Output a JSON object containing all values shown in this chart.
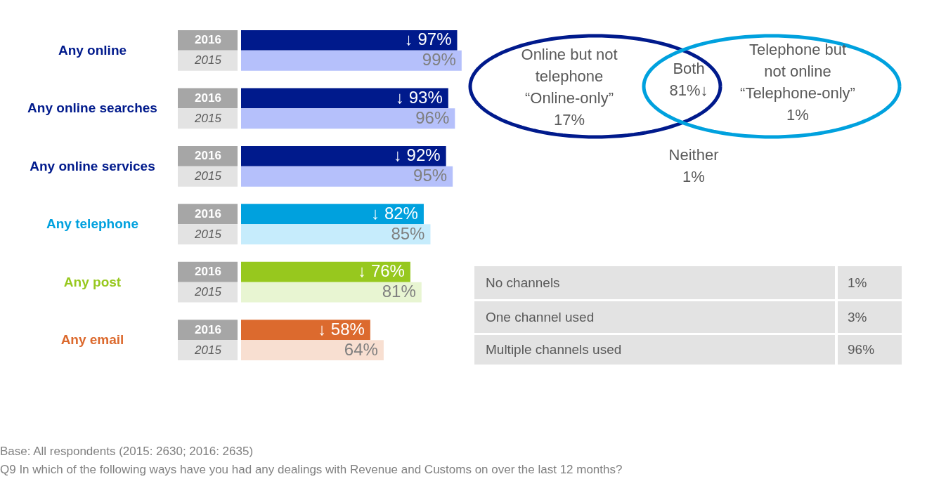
{
  "chart_data": [
    {
      "type": "bar",
      "orientation": "horizontal",
      "data_labels": false,
      "categories": [
        "Any online",
        "Any online searches",
        "Any online services",
        "Any telephone",
        "Any post",
        "Any email"
      ],
      "series": [
        {
          "name": "2016",
          "colors": [
            "#001a8c",
            "#001a8c",
            "#001a8c",
            "#00a1de",
            "#97c81e",
            "#dc6a2e"
          ],
          "values": [
            97,
            93,
            92,
            82,
            76,
            58
          ],
          "value_labels": [
            "↓ 97%",
            "↓ 93%",
            "↓ 92%",
            "↓ 82%",
            "↓ 76%",
            "↓ 58%"
          ]
        },
        {
          "name": "2015",
          "colors": [
            "#b5c0fb",
            "#b5c0fb",
            "#b5c0fb",
            "#c6ecfc",
            "#e8f5d2",
            "#f8dfd1"
          ],
          "values": [
            99,
            96,
            95,
            85,
            81,
            64
          ],
          "value_labels": [
            "99%",
            "96%",
            "95%",
            "85%",
            "81%",
            "64%"
          ]
        }
      ],
      "annotations": [
        "Base: All respondents (2015: 2630; 2016: 2635)",
        "Q9 In which of the following ways have you had any dealings with Revenue and Customs on over the last 12 months?"
      ]
    },
    {
      "type": "other",
      "categories": [
        "Online but not telephone “Online-only”",
        "Both",
        "Telephone but not online “Telephone-only”",
        "Neither"
      ],
      "values": [
        17,
        81,
        1,
        1
      ],
      "value_labels": [
        "17%",
        "81%↓",
        "1%",
        "1%"
      ],
      "colors": [
        "#001a8c",
        "#595959",
        "#00a1de",
        "#595959"
      ]
    },
    {
      "type": "other",
      "categories": [
        "No channels",
        "One channel used",
        "Multiple channels used"
      ],
      "values": [
        1,
        3,
        96
      ],
      "value_labels": [
        "1%",
        "3%",
        "96%"
      ]
    }
  ]
}
